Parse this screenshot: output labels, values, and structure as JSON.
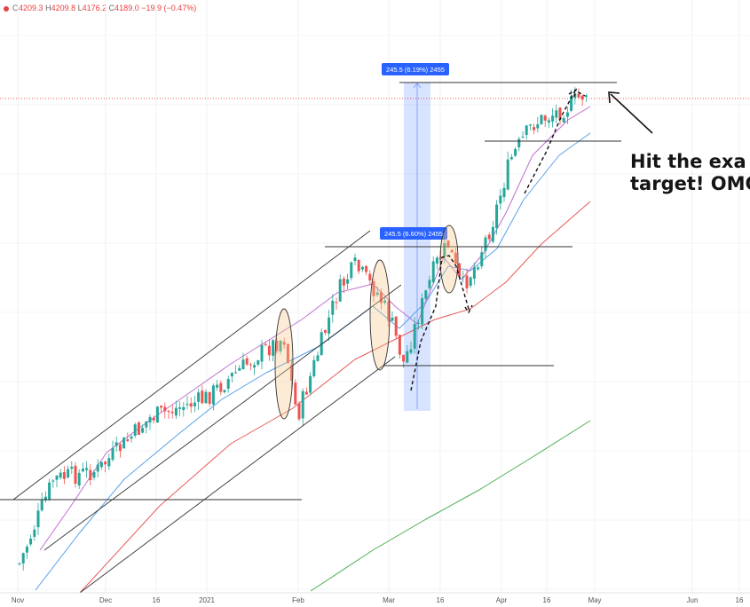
{
  "ohlc": {
    "open_label": "O",
    "open": "4209.3",
    "high_label": "H",
    "high": "4209.8",
    "low_label": "L",
    "low": "4176.2",
    "close_label": "C",
    "close": "4189.0",
    "change": "−19.9 (−0.47%)"
  },
  "annotation": {
    "line1": "Hit the exa",
    "line2": "target! OMG"
  },
  "chart_data": {
    "type": "candlestick",
    "x_tick_labels": [
      "Nov",
      "Dec",
      "16",
      "2021",
      "Feb",
      "Mar",
      "16",
      "Apr",
      "16",
      "May",
      "Jun",
      "16"
    ],
    "measurements": [
      {
        "label": "245.5 (6.19%) 2455"
      },
      {
        "label": "245.5 (6.60%) 2455"
      }
    ],
    "series": [
      {
        "color": "#e85a5a"
      },
      {
        "color": "#5aa0e8"
      },
      {
        "color": "#c070d0"
      },
      {
        "color": "#4caf50"
      }
    ],
    "colors": {
      "up": "#26a69a",
      "down": "#ef5350",
      "measure": "#2962ff"
    }
  }
}
